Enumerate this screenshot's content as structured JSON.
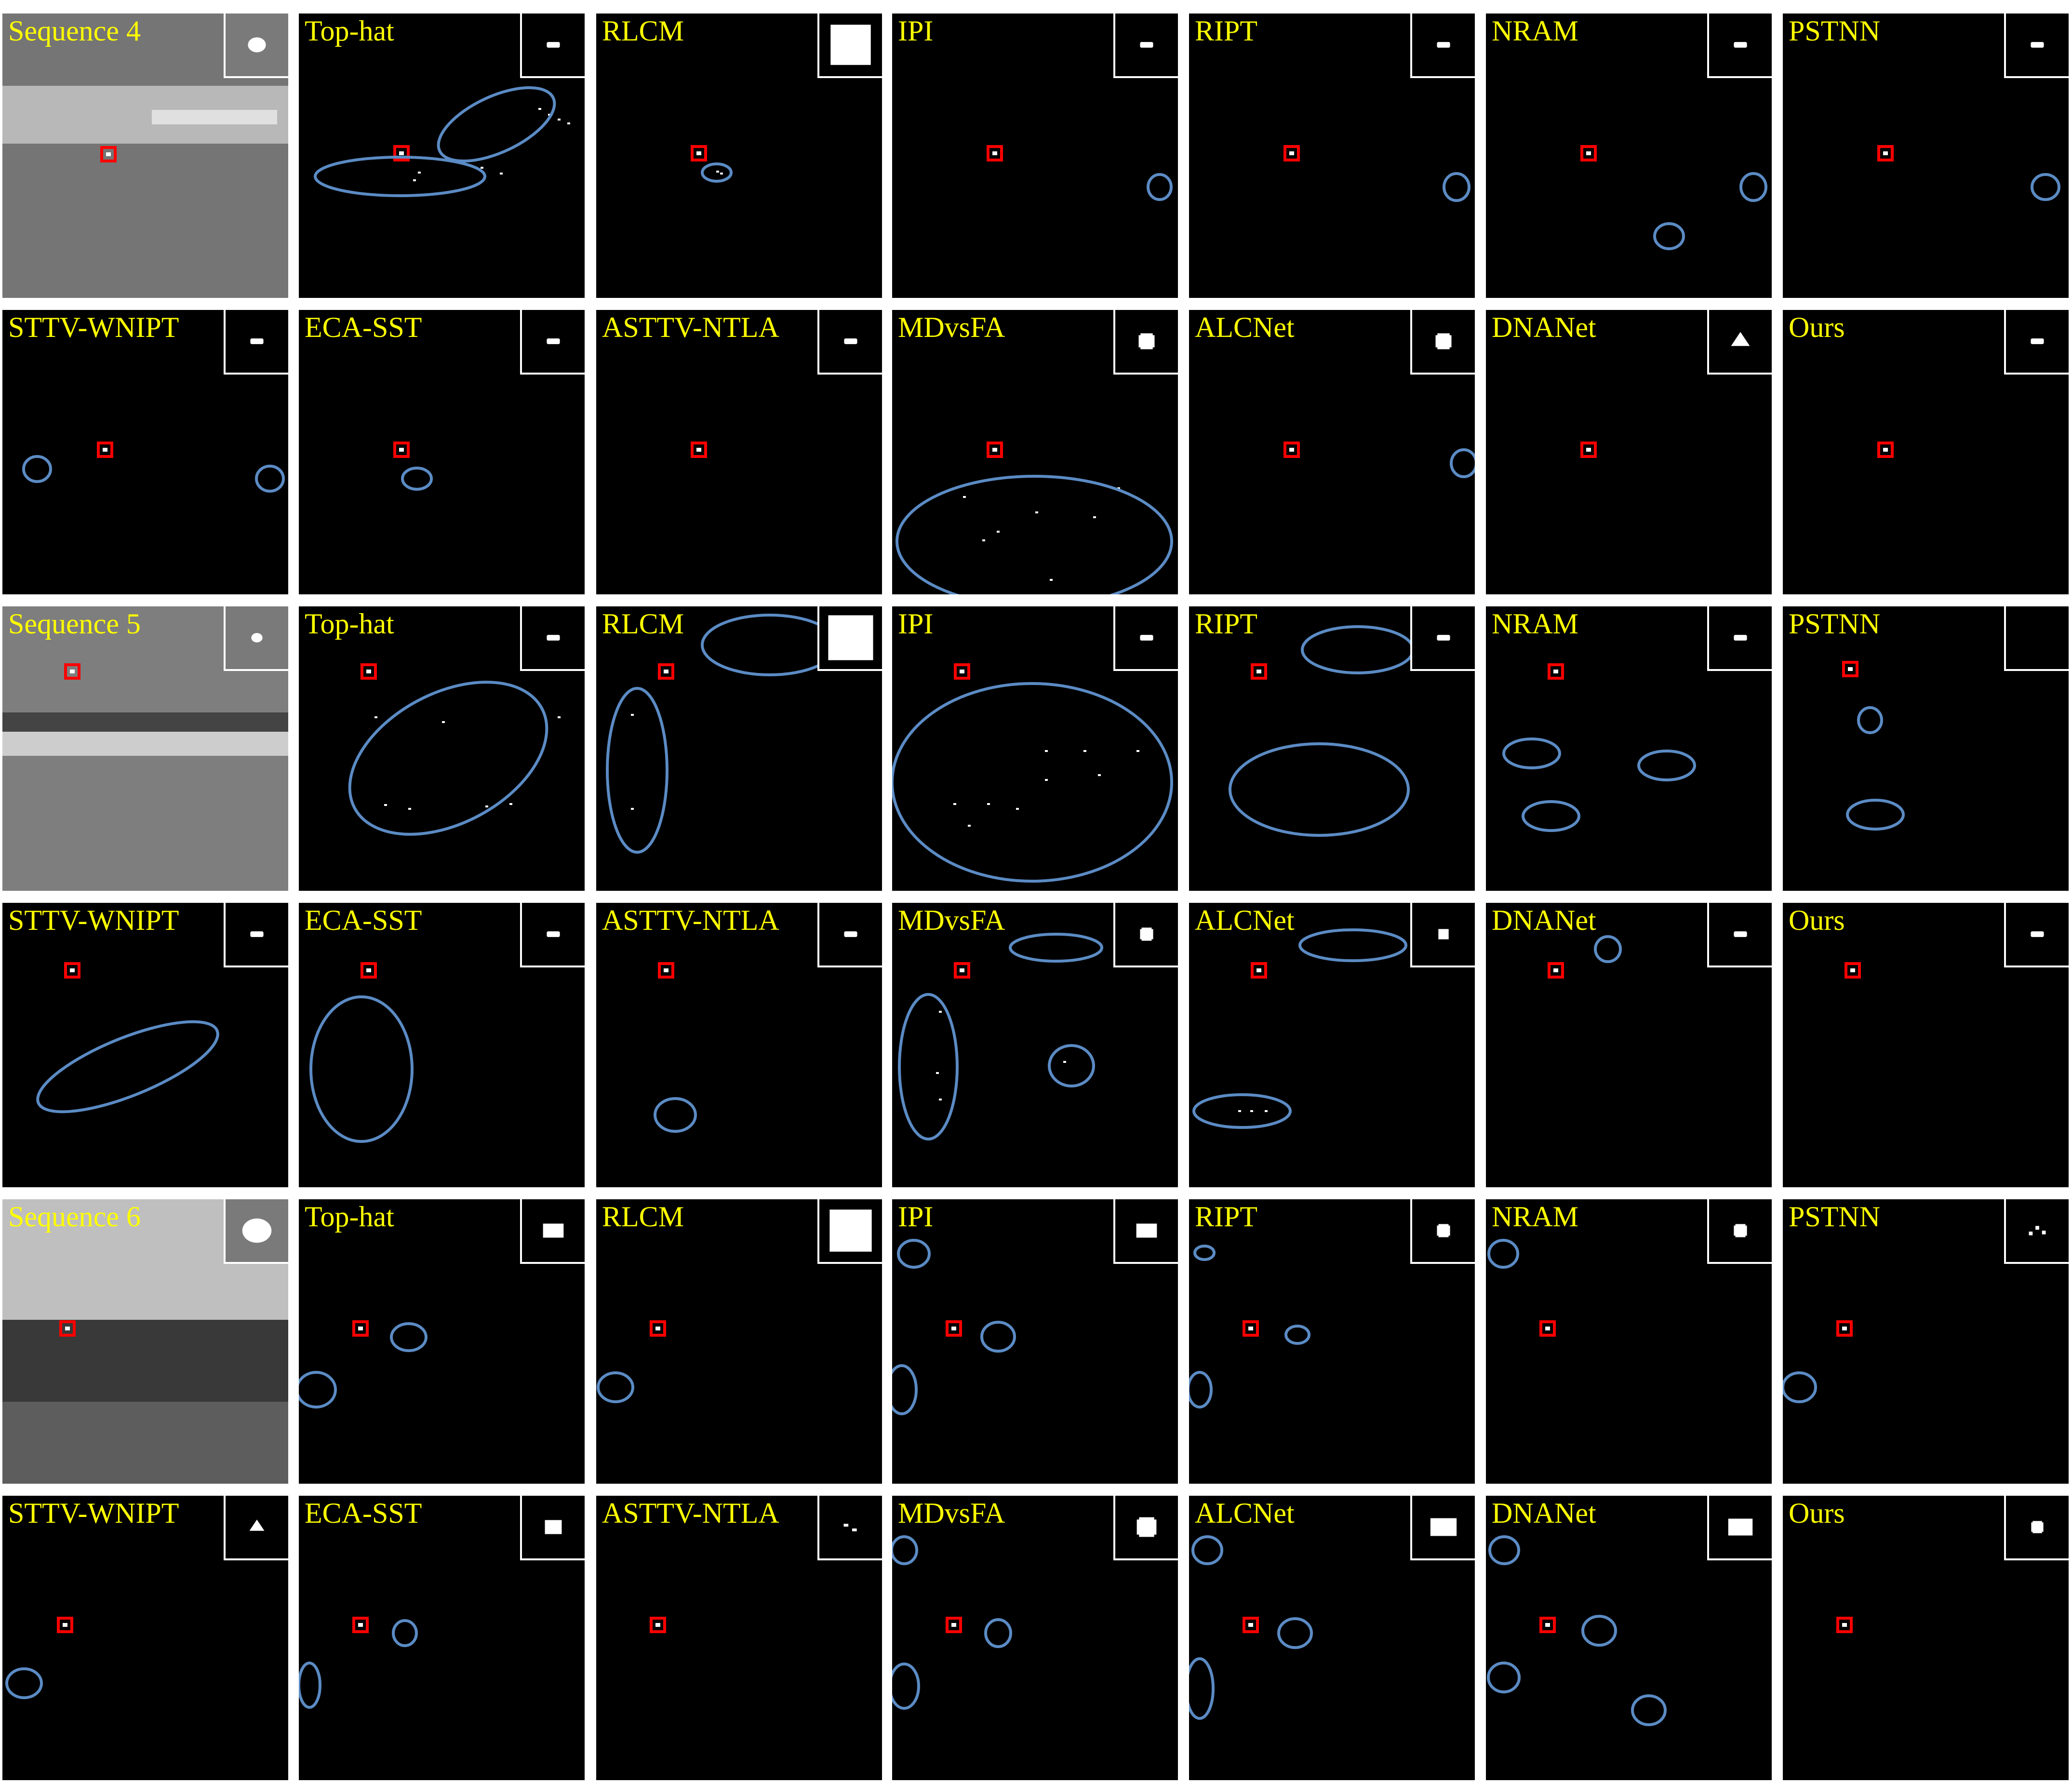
{
  "figure": {
    "colors": {
      "label_text": "#ffff00",
      "target_box": "#ff0000",
      "false_alarm_ellipse": "#5b8bc4",
      "panel_background": "#000000",
      "inset_border": "#ffffff"
    },
    "sequences": [
      {
        "rows": [
          [
            "Sequence 4",
            "Top-hat",
            "RLCM",
            "IPI",
            "RIPT",
            "NRAM",
            "PSTNN"
          ],
          [
            "STTV-WNIPT",
            "ECA-SST",
            "ASTTV-NTLA",
            "MDvsFA",
            "ALCNet",
            "DNANet",
            "Ours"
          ]
        ]
      },
      {
        "rows": [
          [
            "Sequence 5",
            "Top-hat",
            "RLCM",
            "IPI",
            "RIPT",
            "NRAM",
            "PSTNN"
          ],
          [
            "STTV-WNIPT",
            "ECA-SST",
            "ASTTV-NTLA",
            "MDvsFA",
            "ALCNet",
            "DNANet",
            "Ours"
          ]
        ]
      },
      {
        "rows": [
          [
            "Sequence 6",
            "Top-hat",
            "RLCM",
            "IPI",
            "RIPT",
            "NRAM",
            "PSTNN"
          ],
          [
            "STTV-WNIPT",
            "ECA-SST",
            "ASTTV-NTLA",
            "MDvsFA",
            "ALCNet",
            "DNANet",
            "Ours"
          ]
        ]
      }
    ]
  }
}
